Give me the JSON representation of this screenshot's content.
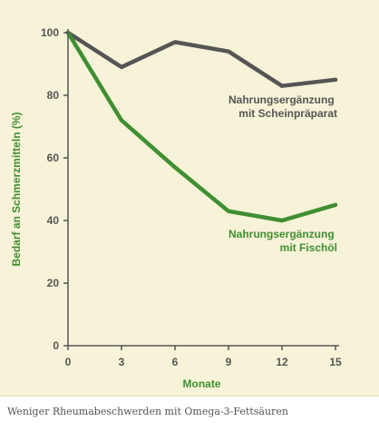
{
  "caption": "Weniger Rheumabeschwerden mit Omega-3-Fettsäuren",
  "chart_data": {
    "type": "line",
    "xlabel": "Monate",
    "ylabel": "Bedarf an Schmerzmitteln (%)",
    "xlim": [
      0,
      15
    ],
    "ylim": [
      0,
      100
    ],
    "xticks": [
      0,
      3,
      6,
      9,
      12,
      15
    ],
    "yticks": [
      0,
      20,
      40,
      60,
      80,
      100
    ],
    "grid": false,
    "series": [
      {
        "name": "Nahrungsergänzung mit Scheinpräparat",
        "label_lines": [
          "Nahrungsergänzung",
          "mit Scheinpräparat"
        ],
        "color": "#555555",
        "x": [
          0,
          3,
          6,
          9,
          12,
          15
        ],
        "y": [
          100,
          89,
          97,
          94,
          83,
          85
        ]
      },
      {
        "name": "Nahrungsergänzung mit Fischöl",
        "label_lines": [
          "Nahrungsergänzung",
          "mit Fischöl"
        ],
        "color": "#3f8f32",
        "x": [
          0,
          3,
          6,
          9,
          12,
          15
        ],
        "y": [
          100,
          72,
          57,
          43,
          40,
          45
        ]
      }
    ]
  }
}
